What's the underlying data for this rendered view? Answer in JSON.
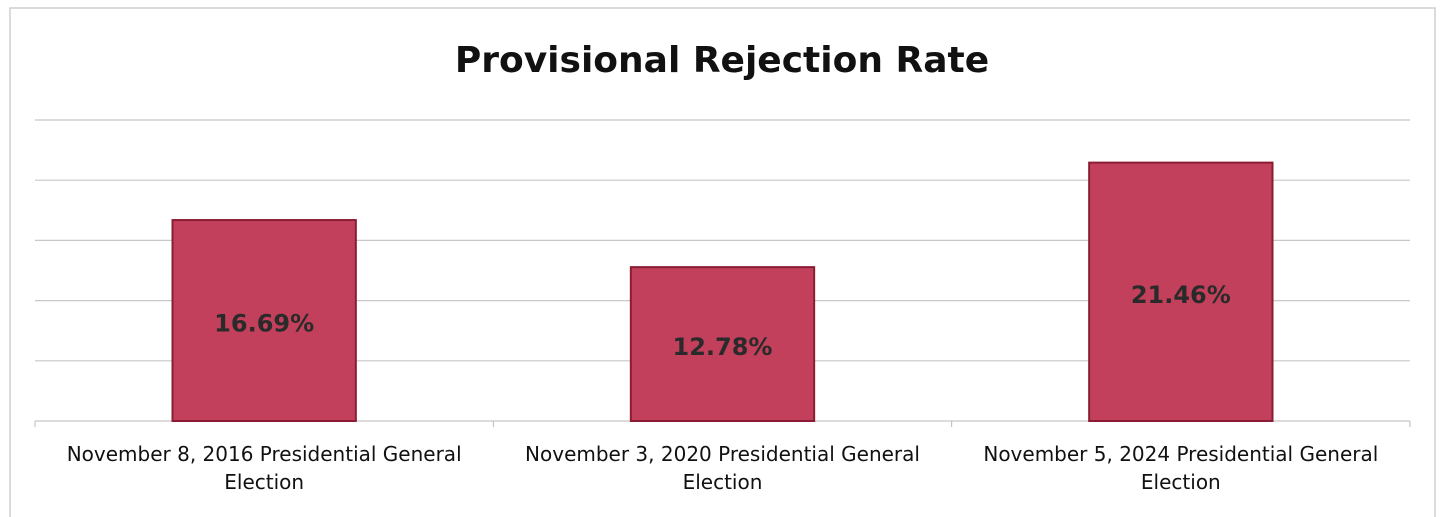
{
  "chart_data": {
    "type": "bar",
    "title": "Provisional Rejection Rate",
    "categories": [
      "November 8, 2016 Presidential General Election",
      "November 3, 2020 Presidential General Election",
      "November 5, 2024 Presidential General Election"
    ],
    "values": [
      16.69,
      12.78,
      21.46
    ],
    "value_labels": [
      "16.69%",
      "12.78%",
      "21.46%"
    ],
    "color": "#c2405c",
    "ylim": [
      0,
      25
    ],
    "yticks": [
      0,
      5,
      10,
      15,
      20,
      25
    ],
    "grid": true
  }
}
